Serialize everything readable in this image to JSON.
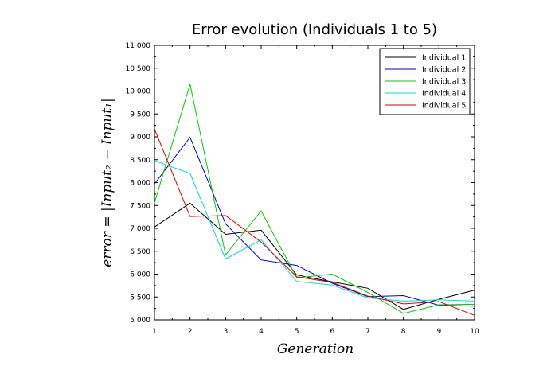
{
  "chart_data": {
    "type": "line",
    "title": "Error evolution (Individuals 1 to 5)",
    "xlabel": "Generation",
    "ylabel": "error = |Input₂ − Input₁|",
    "x": [
      1,
      2,
      3,
      4,
      5,
      6,
      7,
      8,
      9,
      10
    ],
    "xlim": [
      1,
      10
    ],
    "ylim": [
      5000,
      11000
    ],
    "x_ticks": [
      "1",
      "2",
      "3",
      "4",
      "5",
      "6",
      "7",
      "8",
      "9",
      "10"
    ],
    "y_ticks": [
      "5 000",
      "5 500",
      "6 000",
      "6 500",
      "7 000",
      "7 500",
      "8 000",
      "8 500",
      "9 000",
      "9 500",
      "10 000",
      "10 500",
      "11 000"
    ],
    "grid": false,
    "legend_position": "top-right",
    "series": [
      {
        "name": "Individual 1",
        "color": "#000000",
        "values": [
          7030,
          7550,
          6870,
          6960,
          5980,
          5830,
          5690,
          5230,
          5450,
          5650
        ]
      },
      {
        "name": "Individual 2",
        "color": "#0000cc",
        "values": [
          7970,
          8990,
          7100,
          6310,
          6190,
          5800,
          5510,
          5530,
          5320,
          5300
        ]
      },
      {
        "name": "Individual 3",
        "color": "#00cc00",
        "values": [
          7560,
          10150,
          6420,
          7380,
          5920,
          6000,
          5600,
          5140,
          5330,
          5340
        ]
      },
      {
        "name": "Individual 4",
        "color": "#00dddd",
        "values": [
          8480,
          8200,
          6330,
          6750,
          5840,
          5760,
          5480,
          5410,
          5440,
          5410
        ]
      },
      {
        "name": "Individual 5",
        "color": "#dd0000",
        "values": [
          9170,
          7260,
          7280,
          6700,
          5940,
          5820,
          5520,
          5350,
          5400,
          5100
        ]
      }
    ]
  }
}
